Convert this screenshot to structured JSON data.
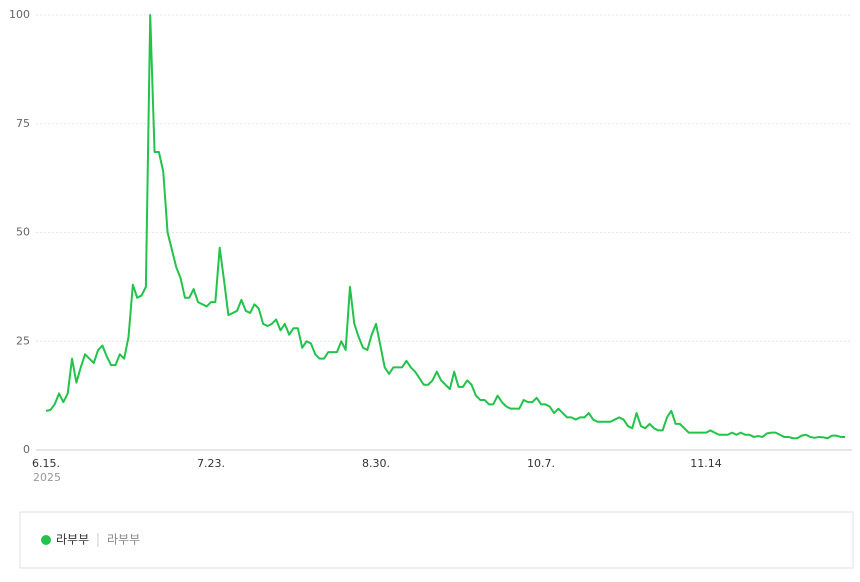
{
  "chart_data": {
    "type": "line",
    "categories": [
      "6.15.",
      null,
      null,
      null,
      null,
      null,
      null,
      null,
      null,
      null,
      null,
      null,
      null,
      null,
      null,
      null,
      null,
      null,
      null,
      null,
      null,
      null,
      null,
      null,
      null,
      null,
      null,
      null,
      null,
      null,
      null,
      null,
      null,
      null,
      null,
      null,
      null,
      null,
      "7.23.",
      null,
      null,
      null,
      null,
      null,
      null,
      null,
      null,
      null,
      null,
      null,
      null,
      null,
      null,
      null,
      null,
      null,
      null,
      null,
      null,
      null,
      null,
      null,
      null,
      null,
      null,
      null,
      null,
      null,
      null,
      null,
      null,
      null,
      null,
      null,
      null,
      null,
      "8.30.",
      null,
      null,
      null,
      null,
      null,
      null,
      null,
      null,
      null,
      null,
      null,
      null,
      null,
      null,
      null,
      null,
      null,
      null,
      null,
      null,
      null,
      null,
      null,
      null,
      null,
      null,
      null,
      null,
      null,
      null,
      null,
      null,
      null,
      null,
      null,
      null,
      null,
      "10.7.",
      null,
      null,
      null,
      null,
      null,
      null,
      null,
      null,
      null,
      null,
      null,
      null,
      null,
      null,
      null,
      null,
      null,
      null,
      null,
      null,
      null,
      null,
      null,
      null,
      null,
      null,
      null,
      null,
      null,
      null,
      null,
      null,
      null,
      null,
      null,
      null,
      null,
      "11.14",
      null,
      null,
      null,
      null,
      null,
      null,
      null,
      null,
      null,
      null,
      null,
      null,
      null,
      null,
      null,
      null,
      null,
      null,
      null,
      null,
      null,
      null,
      null,
      null,
      null,
      null,
      null,
      null,
      null,
      null,
      null,
      null
    ],
    "year_label": "2025",
    "series": [
      {
        "name": "라부부",
        "color": "#22c34a",
        "values": [
          9,
          9.2,
          10.5,
          13,
          11,
          13,
          21,
          15.5,
          19,
          22,
          21,
          20,
          23,
          24,
          21.5,
          19.5,
          19.5,
          22,
          21,
          26,
          38,
          35,
          35.5,
          37.5,
          100,
          68.5,
          68.5,
          64,
          50,
          46,
          42,
          39.5,
          35,
          35,
          37,
          34,
          33.5,
          33,
          34,
          34,
          46.5,
          39,
          31,
          31.5,
          32,
          34.5,
          32,
          31.5,
          33.5,
          32.5,
          29,
          28.5,
          29,
          30,
          27.5,
          29,
          26.5,
          28,
          28,
          23.5,
          25,
          24.5,
          22,
          21,
          21,
          22.5,
          22.5,
          22.5,
          25,
          23,
          37.5,
          29,
          26,
          23.5,
          23,
          26.5,
          29,
          24,
          19,
          17.5,
          19,
          19,
          19,
          20.5,
          19,
          18,
          16.5,
          15,
          15,
          16,
          18,
          16,
          15,
          14,
          18,
          14.5,
          14.5,
          16,
          15,
          12.5,
          11.5,
          11.5,
          10.5,
          10.5,
          12.5,
          11,
          10,
          9.5,
          9.5,
          9.5,
          11.5,
          11,
          11,
          12,
          10.5,
          10.5,
          10,
          8.5,
          9.5,
          8.5,
          7.5,
          7.5,
          7,
          7.5,
          7.5,
          8.5,
          7,
          6.5,
          6.5,
          6.5,
          6.5,
          7,
          7.5,
          7,
          5.5,
          5,
          8.5,
          5.5,
          5,
          6,
          5,
          4.5,
          4.5,
          7.5,
          9,
          6,
          6,
          5,
          4,
          4,
          4,
          4,
          4,
          4.5,
          4,
          3.5,
          3.5,
          3.5,
          4,
          3.5,
          4,
          3.5,
          3.5,
          3,
          3.2,
          3,
          3.8,
          4,
          4,
          3.5,
          3,
          3,
          2.7,
          2.7,
          3.3,
          3.5,
          3,
          2.8,
          3,
          2.9,
          2.7,
          3.3,
          3.3,
          3,
          3
        ]
      }
    ],
    "series_keyword": "라부부",
    "ylim": [
      0,
      100
    ],
    "yticks": [
      0,
      25,
      50,
      75,
      100
    ],
    "grid": true
  }
}
